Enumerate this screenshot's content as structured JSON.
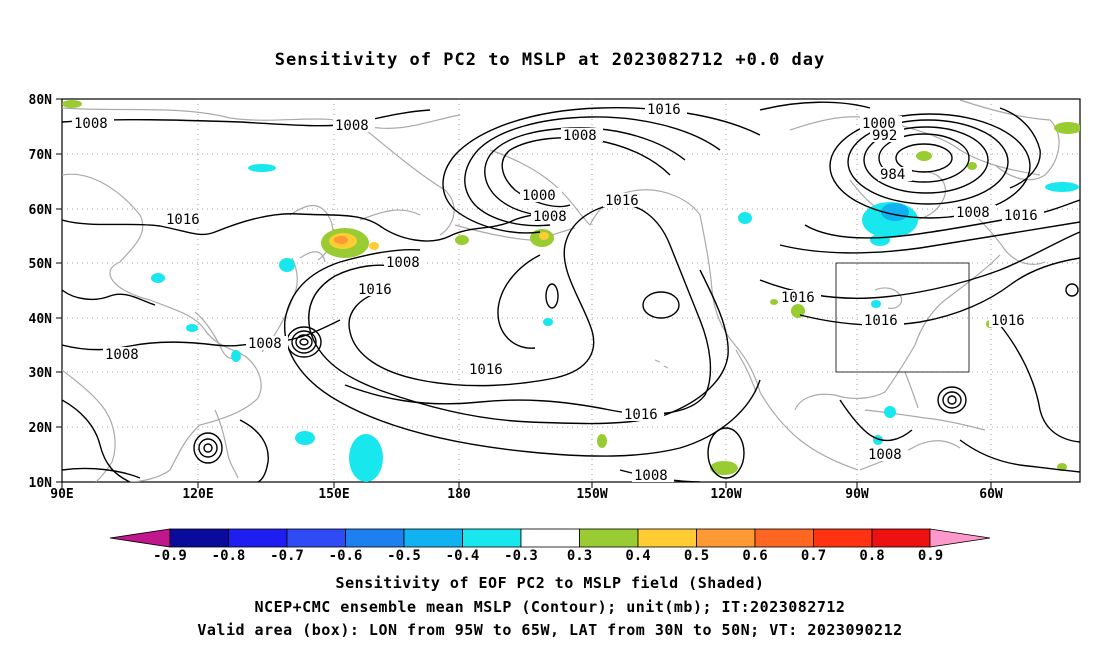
{
  "title": "Sensitivity of PC2 to MSLP at 2023082712 +0.0 day",
  "axes": {
    "lat_labels": [
      "80N",
      "70N",
      "60N",
      "50N",
      "40N",
      "30N",
      "20N",
      "10N"
    ],
    "lon_labels": [
      "90E",
      "120E",
      "150E",
      "180",
      "150W",
      "120W",
      "90W",
      "60W"
    ]
  },
  "contour_labels": [
    "1008",
    "1008",
    "1016",
    "1008",
    "1000",
    "992",
    "984",
    "1008",
    "1016",
    "1000",
    "1008",
    "1016",
    "1016",
    "1008",
    "1016",
    "1016",
    "1016",
    "1016",
    "1008",
    "1016",
    "1008",
    "1008",
    "1008"
  ],
  "valid_box_label": "Valid area (box)",
  "colorbar": {
    "labels": [
      "-0.9",
      "-0.8",
      "-0.7",
      "-0.6",
      "-0.5",
      "-0.4",
      "-0.3",
      "0.3",
      "0.4",
      "0.5",
      "0.6",
      "0.7",
      "0.8",
      "0.9"
    ],
    "colors": [
      "#0a0a9c",
      "#1e1ef0",
      "#2e4bf6",
      "#1e7ff0",
      "#10b3f0",
      "#18e8ee",
      "#ffffff",
      "#99cc33",
      "#ffcc33",
      "#ff9933",
      "#ff6622",
      "#ff3311",
      "#ee1111"
    ],
    "low_color": "#c0188c",
    "high_color": "#ff99cc"
  },
  "captions": {
    "line1": "Sensitivity of EOF PC2 to MSLP field (Shaded)",
    "line2": "NCEP+CMC ensemble mean MSLP (Contour); unit(mb); IT:2023082712",
    "line3": "Valid area (box): LON from 95W to 65W, LAT from 30N to 50N; VT: 2023090212"
  }
}
